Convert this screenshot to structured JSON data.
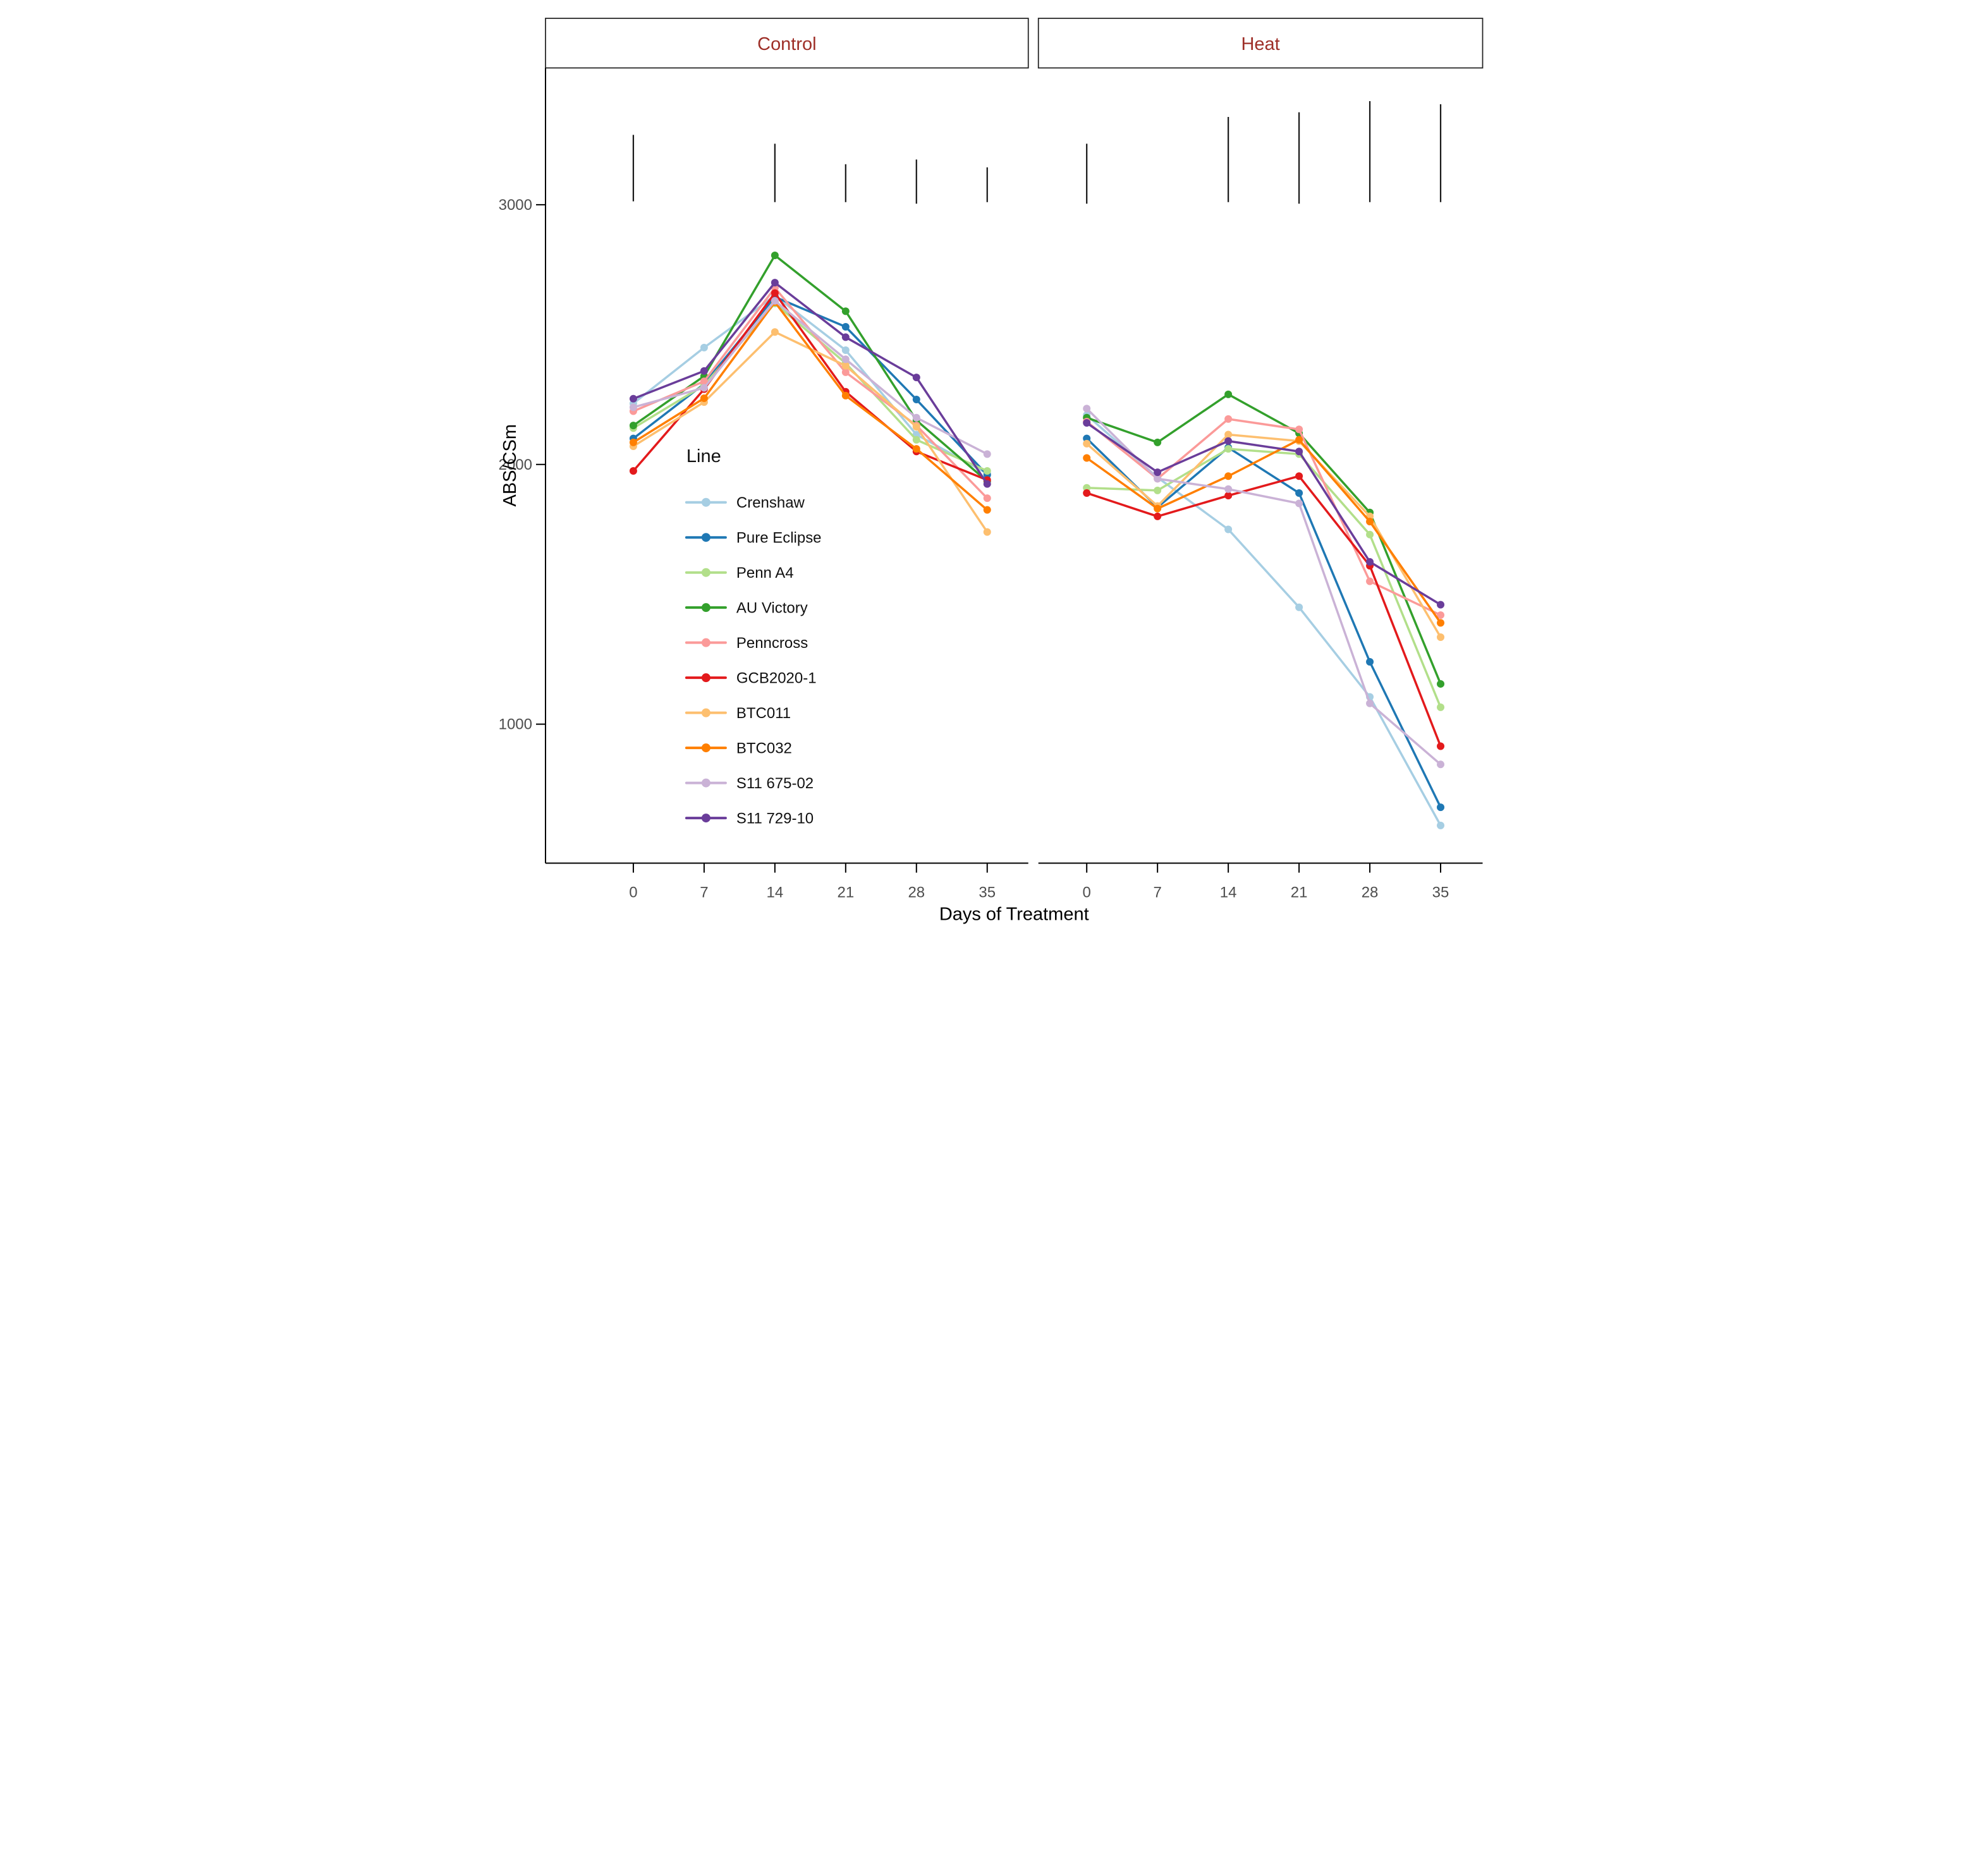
{
  "strip_labels": {
    "control": "Control",
    "heat": "Heat"
  },
  "axes": {
    "ylabel": "ABS/CSm",
    "xlabel": "Days of Treatment",
    "yticks": [
      "3000",
      "2000",
      "1000"
    ],
    "xticks": [
      "0",
      "7",
      "14",
      "21",
      "28",
      "35"
    ]
  },
  "legend": {
    "title": "Line",
    "items": [
      {
        "label": "Crenshaw",
        "color": "#A6CEE3"
      },
      {
        "label": "Pure Eclipse",
        "color": "#1F78B4"
      },
      {
        "label": "Penn A4",
        "color": "#B2DF8A"
      },
      {
        "label": "AU Victory",
        "color": "#33A02C"
      },
      {
        "label": "Penncross",
        "color": "#FB9A99"
      },
      {
        "label": "GCB2020-1",
        "color": "#E31A1C"
      },
      {
        "label": "BTC011",
        "color": "#FDBF6F"
      },
      {
        "label": "BTC032",
        "color": "#FF7F00"
      },
      {
        "label": "S11 675-02",
        "color": "#CAB2D6"
      },
      {
        "label": "S11 729-10",
        "color": "#6A3D9A"
      }
    ]
  },
  "colors": {
    "strip_text": "#9E2F28",
    "axis_text": "#4d4d4d",
    "axis_line": "#000000",
    "error_bar": "#1a1a1a",
    "background": "#ffffff"
  },
  "chart_data": {
    "type": "line",
    "title": "",
    "facets": [
      "Control",
      "Heat"
    ],
    "x": [
      0,
      7,
      14,
      21,
      28,
      35
    ],
    "xlabel": "Days of Treatment",
    "ylabel": "ABS/CSm",
    "ylim": [
      465,
      3530
    ],
    "yticks": [
      1000,
      2000,
      3000
    ],
    "grid": false,
    "legend_title": "Line",
    "legend_position": "inside Control panel, lower middle",
    "series": [
      {
        "name": "Crenshaw",
        "color": "#A6CEE3",
        "control": [
          2235,
          2450,
          2650,
          2440,
          2115,
          1965
        ],
        "heat": [
          2190,
          1950,
          1750,
          1450,
          1105,
          610
        ]
      },
      {
        "name": "Pure Eclipse",
        "color": "#1F78B4",
        "control": [
          2100,
          2310,
          2645,
          2530,
          2250,
          1960
        ],
        "heat": [
          2100,
          1835,
          2065,
          1890,
          1240,
          680
        ]
      },
      {
        "name": "Penn A4",
        "color": "#B2DF8A",
        "control": [
          2140,
          2305,
          2620,
          2390,
          2095,
          1975
        ],
        "heat": [
          1910,
          1900,
          2060,
          2040,
          1730,
          1065
        ]
      },
      {
        "name": "AU Victory",
        "color": "#33A02C",
        "control": [
          2150,
          2340,
          2805,
          2590,
          2170,
          1935
        ],
        "heat": [
          2180,
          2085,
          2270,
          2120,
          1815,
          1155
        ]
      },
      {
        "name": "Penncross",
        "color": "#FB9A99",
        "control": [
          2205,
          2320,
          2680,
          2355,
          2150,
          1870
        ],
        "heat": [
          2165,
          1945,
          2175,
          2135,
          1550,
          1420
        ]
      },
      {
        "name": "GCB2020-1",
        "color": "#E31A1C",
        "control": [
          1975,
          2290,
          2660,
          2280,
          2050,
          1940
        ],
        "heat": [
          1890,
          1800,
          1880,
          1955,
          1610,
          915
        ]
      },
      {
        "name": "BTC011",
        "color": "#FDBF6F",
        "control": [
          2070,
          2240,
          2510,
          2380,
          2145,
          1740
        ],
        "heat": [
          2080,
          1840,
          2115,
          2090,
          1800,
          1335
        ]
      },
      {
        "name": "BTC032",
        "color": "#FF7F00",
        "control": [
          2085,
          2255,
          2625,
          2265,
          2060,
          1825
        ],
        "heat": [
          2025,
          1830,
          1955,
          2095,
          1780,
          1390
        ]
      },
      {
        "name": "S11 675-02",
        "color": "#CAB2D6",
        "control": [
          2220,
          2295,
          2630,
          2405,
          2180,
          2040
        ],
        "heat": [
          2215,
          1945,
          1905,
          1850,
          1080,
          845
        ]
      },
      {
        "name": "S11 729-10",
        "color": "#6A3D9A",
        "control": [
          2253,
          2360,
          2700,
          2490,
          2335,
          1925
        ],
        "heat": [
          2160,
          1970,
          2090,
          2050,
          1625,
          1460
        ]
      }
    ],
    "error_bars": {
      "description": "floating vertical LSD bars near the top of each facet; no bar at day 7",
      "control": [
        {
          "x": 0,
          "low": 3013,
          "high": 3269
        },
        {
          "x": 14,
          "low": 3010,
          "high": 3235
        },
        {
          "x": 21,
          "low": 3010,
          "high": 3156
        },
        {
          "x": 28,
          "low": 3004,
          "high": 3174
        },
        {
          "x": 35,
          "low": 3010,
          "high": 3144
        }
      ],
      "heat": [
        {
          "x": 0,
          "low": 3004,
          "high": 3235
        },
        {
          "x": 14,
          "low": 3010,
          "high": 3338
        },
        {
          "x": 21,
          "low": 3004,
          "high": 3356
        },
        {
          "x": 28,
          "low": 3010,
          "high": 3399
        },
        {
          "x": 35,
          "low": 3010,
          "high": 3387
        }
      ]
    }
  }
}
